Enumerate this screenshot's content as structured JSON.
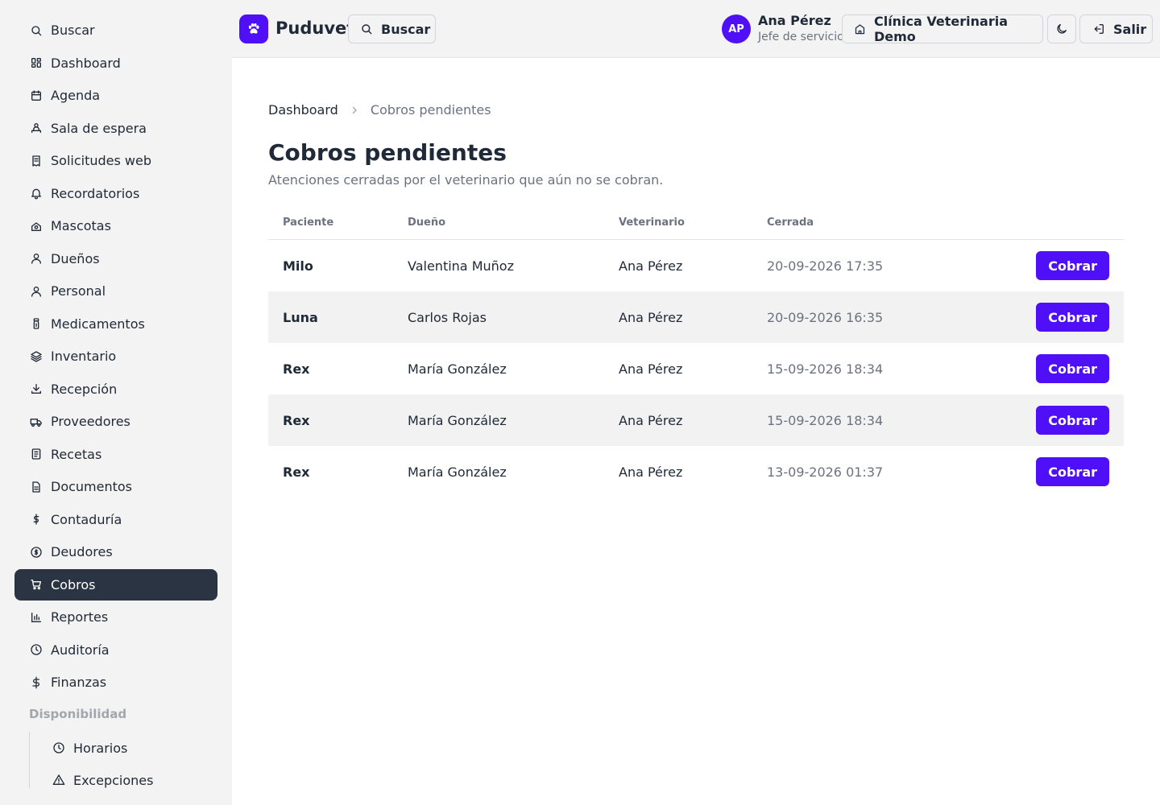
{
  "sidebar": {
    "items": [
      {
        "label": "Buscar",
        "icon": "search-icon"
      },
      {
        "label": "Dashboard",
        "icon": "dashboard-icon"
      },
      {
        "label": "Agenda",
        "icon": "calendar-icon"
      },
      {
        "label": "Sala de espera",
        "icon": "waiting-room-icon"
      },
      {
        "label": "Solicitudes web",
        "icon": "receipt-icon"
      },
      {
        "label": "Recordatorios",
        "icon": "bell-icon"
      },
      {
        "label": "Mascotas",
        "icon": "pet-icon"
      },
      {
        "label": "Dueños",
        "icon": "user-icon"
      },
      {
        "label": "Personal",
        "icon": "staff-icon"
      },
      {
        "label": "Medicamentos",
        "icon": "medicine-icon"
      },
      {
        "label": "Inventario",
        "icon": "layers-icon"
      },
      {
        "label": "Recepción",
        "icon": "download-icon"
      },
      {
        "label": "Proveedores",
        "icon": "truck-icon"
      },
      {
        "label": "Recetas",
        "icon": "prescription-icon"
      },
      {
        "label": "Documentos",
        "icon": "document-icon"
      },
      {
        "label": "Contaduría",
        "icon": "dollar-icon"
      },
      {
        "label": "Deudores",
        "icon": "coin-icon"
      },
      {
        "label": "Cobros",
        "icon": "cart-icon"
      },
      {
        "label": "Reportes",
        "icon": "bar-chart-icon"
      },
      {
        "label": "Auditoría",
        "icon": "clock-icon"
      },
      {
        "label": "Finanzas",
        "icon": "dollar-sign-icon"
      }
    ],
    "active_index": 17,
    "section_label": "Disponibilidad",
    "sub_items": [
      {
        "label": "Horarios",
        "icon": "clock-icon"
      },
      {
        "label": "Excepciones",
        "icon": "warning-icon"
      }
    ]
  },
  "header": {
    "brand": "Puduvet",
    "search_label": "Buscar",
    "user": {
      "initials": "AP",
      "name": "Ana Pérez",
      "role": "Jefe de servicio"
    },
    "clinic_label": "Clínica Veterinaria Demo",
    "logout_label": "Salir"
  },
  "breadcrumb": {
    "parent": "Dashboard",
    "current": "Cobros pendientes"
  },
  "page": {
    "title": "Cobros pendientes",
    "subtitle": "Atenciones cerradas por el veterinario que aún no se cobran."
  },
  "table": {
    "headers": [
      "Paciente",
      "Dueño",
      "Veterinario",
      "Cerrada"
    ],
    "action_label": "Cobrar",
    "rows": [
      {
        "paciente": "Milo",
        "dueno": "Valentina Muñoz",
        "veterinario": "Ana Pérez",
        "cerrada": "20-09-2026 17:35"
      },
      {
        "paciente": "Luna",
        "dueno": "Carlos Rojas",
        "veterinario": "Ana Pérez",
        "cerrada": "20-09-2026 16:35"
      },
      {
        "paciente": "Rex",
        "dueno": "María González",
        "veterinario": "Ana Pérez",
        "cerrada": "15-09-2026 18:34"
      },
      {
        "paciente": "Rex",
        "dueno": "María González",
        "veterinario": "Ana Pérez",
        "cerrada": "15-09-2026 18:34"
      },
      {
        "paciente": "Rex",
        "dueno": "María González",
        "veterinario": "Ana Pérez",
        "cerrada": "13-09-2026 01:37"
      }
    ]
  },
  "colors": {
    "accent": "#4f0ff7",
    "sidebar_active": "#2b3443",
    "sidebar_bg": "#f3f3f3"
  }
}
